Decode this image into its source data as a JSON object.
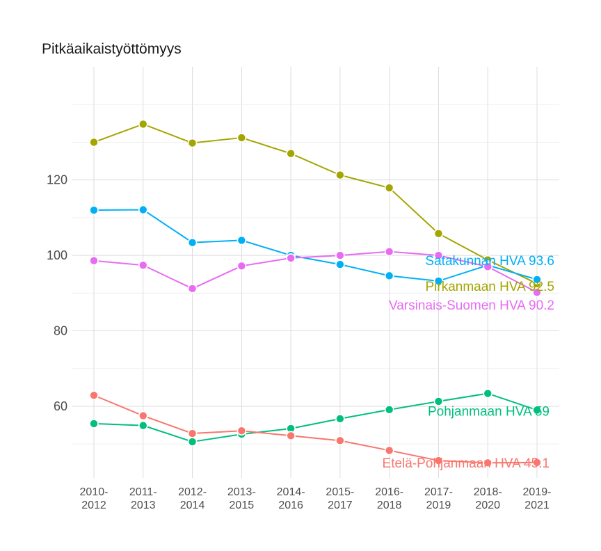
{
  "chart_data": {
    "type": "line",
    "title": "Pitkäaikaistyöttömyys",
    "xlabel": "",
    "ylabel": "",
    "categories": [
      [
        "2010-",
        "2012"
      ],
      [
        "2011-",
        "2013"
      ],
      [
        "2012-",
        "2014"
      ],
      [
        "2013-",
        "2015"
      ],
      [
        "2014-",
        "2016"
      ],
      [
        "2015-",
        "2017"
      ],
      [
        "2016-",
        "2018"
      ],
      [
        "2017-",
        "2019"
      ],
      [
        "2018-",
        "2020"
      ],
      [
        "2019-",
        "2021"
      ]
    ],
    "ylim": [
      41,
      150
    ],
    "yticks": [
      60,
      80,
      100,
      120
    ],
    "grid": true,
    "series": [
      {
        "name": "Pirkanmaan HVA",
        "color": "#a3a500",
        "values": [
          130.0,
          134.8,
          129.8,
          131.2,
          127.0,
          121.3,
          117.9,
          105.8,
          98.8,
          92.5
        ],
        "end_label": "Pirkanmaan HVA 92.5"
      },
      {
        "name": "Satakunnan HVA",
        "color": "#00b0f6",
        "values": [
          112.0,
          112.1,
          103.4,
          104.0,
          100.0,
          97.6,
          94.6,
          93.2,
          97.4,
          93.6
        ],
        "end_label": "Satakunnan HVA 93.6"
      },
      {
        "name": "Varsinais-Suomen HVA",
        "color": "#e76bf3",
        "values": [
          98.6,
          97.4,
          91.2,
          97.2,
          99.3,
          100.0,
          101.0,
          100.0,
          97.0,
          90.2
        ],
        "end_label": "Varsinais-Suomen HVA 90.2"
      },
      {
        "name": "Pohjanmaan HVA",
        "color": "#00bf7d",
        "values": [
          55.4,
          54.9,
          50.6,
          52.6,
          54.1,
          56.7,
          59.1,
          61.3,
          63.4,
          59.0
        ],
        "end_label": "Pohjanmaan HVA 59"
      },
      {
        "name": "Etelä-Pohjanmaan HVA",
        "color": "#f8766d",
        "values": [
          62.9,
          57.5,
          52.8,
          53.5,
          52.2,
          50.9,
          48.3,
          45.6,
          45.0,
          45.1
        ],
        "end_label": "Etelä-Pohjanmaan HVA 45.1"
      }
    ]
  }
}
